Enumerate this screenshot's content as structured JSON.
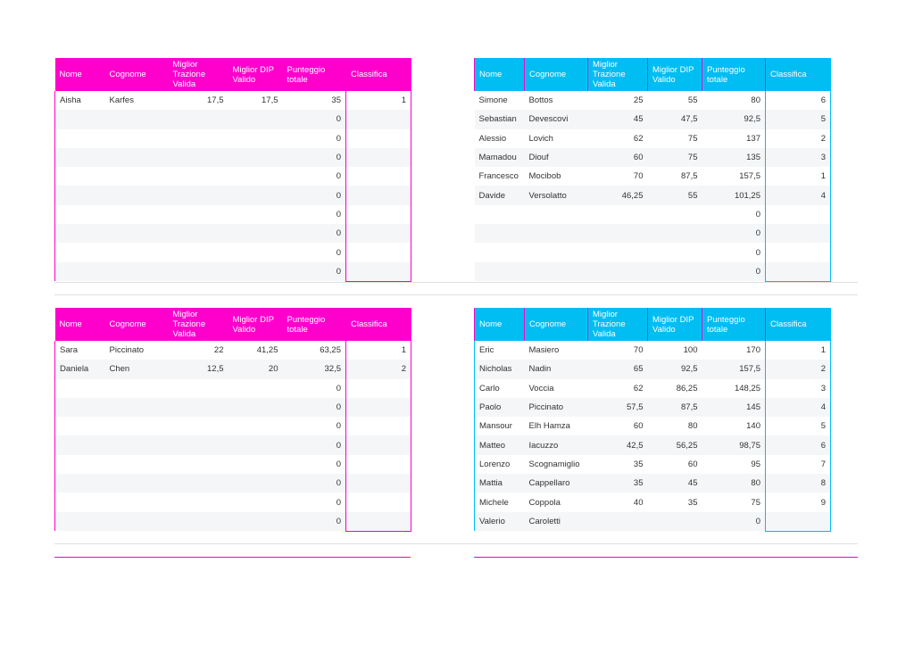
{
  "columns": [
    "Nome",
    "Cognome",
    "Miglior Trazione Valida",
    "Miglior DIP Valido",
    "Punteggio totale",
    "Classifica"
  ],
  "tables": [
    {
      "id": "top-left",
      "rows": [
        [
          "Aisha",
          "Karfes",
          "17,5",
          "17,5",
          "35",
          "1"
        ],
        [
          "",
          "",
          "",
          "",
          "0",
          ""
        ],
        [
          "",
          "",
          "",
          "",
          "0",
          ""
        ],
        [
          "",
          "",
          "",
          "",
          "0",
          ""
        ],
        [
          "",
          "",
          "",
          "",
          "0",
          ""
        ],
        [
          "",
          "",
          "",
          "",
          "0",
          ""
        ],
        [
          "",
          "",
          "",
          "",
          "0",
          ""
        ],
        [
          "",
          "",
          "",
          "",
          "0",
          ""
        ],
        [
          "",
          "",
          "",
          "",
          "0",
          ""
        ],
        [
          "",
          "",
          "",
          "",
          "0",
          ""
        ]
      ]
    },
    {
      "id": "top-right",
      "rows": [
        [
          "Simone",
          "Bottos",
          "25",
          "55",
          "80",
          "6"
        ],
        [
          "Sebastian",
          "Devescovi",
          "45",
          "47,5",
          "92,5",
          "5"
        ],
        [
          "Alessio",
          "Lovich",
          "62",
          "75",
          "137",
          "2"
        ],
        [
          "Mamadou",
          "Diouf",
          "60",
          "75",
          "135",
          "3"
        ],
        [
          "Francesco",
          "Mocibob",
          "70",
          "87,5",
          "157,5",
          "1"
        ],
        [
          "Davide",
          "Versolatto",
          "46,25",
          "55",
          "101,25",
          "4"
        ],
        [
          "",
          "",
          "",
          "",
          "0",
          ""
        ],
        [
          "",
          "",
          "",
          "",
          "0",
          ""
        ],
        [
          "",
          "",
          "",
          "",
          "0",
          ""
        ],
        [
          "",
          "",
          "",
          "",
          "0",
          ""
        ]
      ]
    },
    {
      "id": "bottom-left",
      "rows": [
        [
          "Sara",
          "Piccinato",
          "22",
          "41,25",
          "63,25",
          "1"
        ],
        [
          "Daniela",
          "Chen",
          "12,5",
          "20",
          "32,5",
          "2"
        ],
        [
          "",
          "",
          "",
          "",
          "0",
          ""
        ],
        [
          "",
          "",
          "",
          "",
          "0",
          ""
        ],
        [
          "",
          "",
          "",
          "",
          "0",
          ""
        ],
        [
          "",
          "",
          "",
          "",
          "0",
          ""
        ],
        [
          "",
          "",
          "",
          "",
          "0",
          ""
        ],
        [
          "",
          "",
          "",
          "",
          "0",
          ""
        ],
        [
          "",
          "",
          "",
          "",
          "0",
          ""
        ],
        [
          "",
          "",
          "",
          "",
          "0",
          ""
        ]
      ]
    },
    {
      "id": "bottom-right",
      "rows": [
        [
          "Eric",
          "Masiero",
          "70",
          "100",
          "170",
          "1"
        ],
        [
          "Nicholas",
          "Nadin",
          "65",
          "92,5",
          "157,5",
          "2"
        ],
        [
          "Carlo",
          "Voccia",
          "62",
          "86,25",
          "148,25",
          "3"
        ],
        [
          "Paolo",
          "Piccinato",
          "57,5",
          "87,5",
          "145",
          "4"
        ],
        [
          "Mansour",
          "Elh Hamza",
          "60",
          "80",
          "140",
          "5"
        ],
        [
          "Matteo",
          "Iacuzzo",
          "42,5",
          "56,25",
          "98,75",
          "6"
        ],
        [
          "Lorenzo",
          "Scognamiglio",
          "35",
          "60",
          "95",
          "7"
        ],
        [
          "Mattia",
          "Cappellaro",
          "35",
          "45",
          "80",
          "8"
        ],
        [
          "Michele",
          "Coppola",
          "40",
          "35",
          "75",
          "9"
        ],
        [
          "Valerio",
          "Caroletti",
          "",
          "",
          "0",
          ""
        ]
      ]
    }
  ],
  "colors": {
    "pink": "#ff00cc",
    "blue": "#00bdf2",
    "stripe": "#f5f6f8"
  }
}
